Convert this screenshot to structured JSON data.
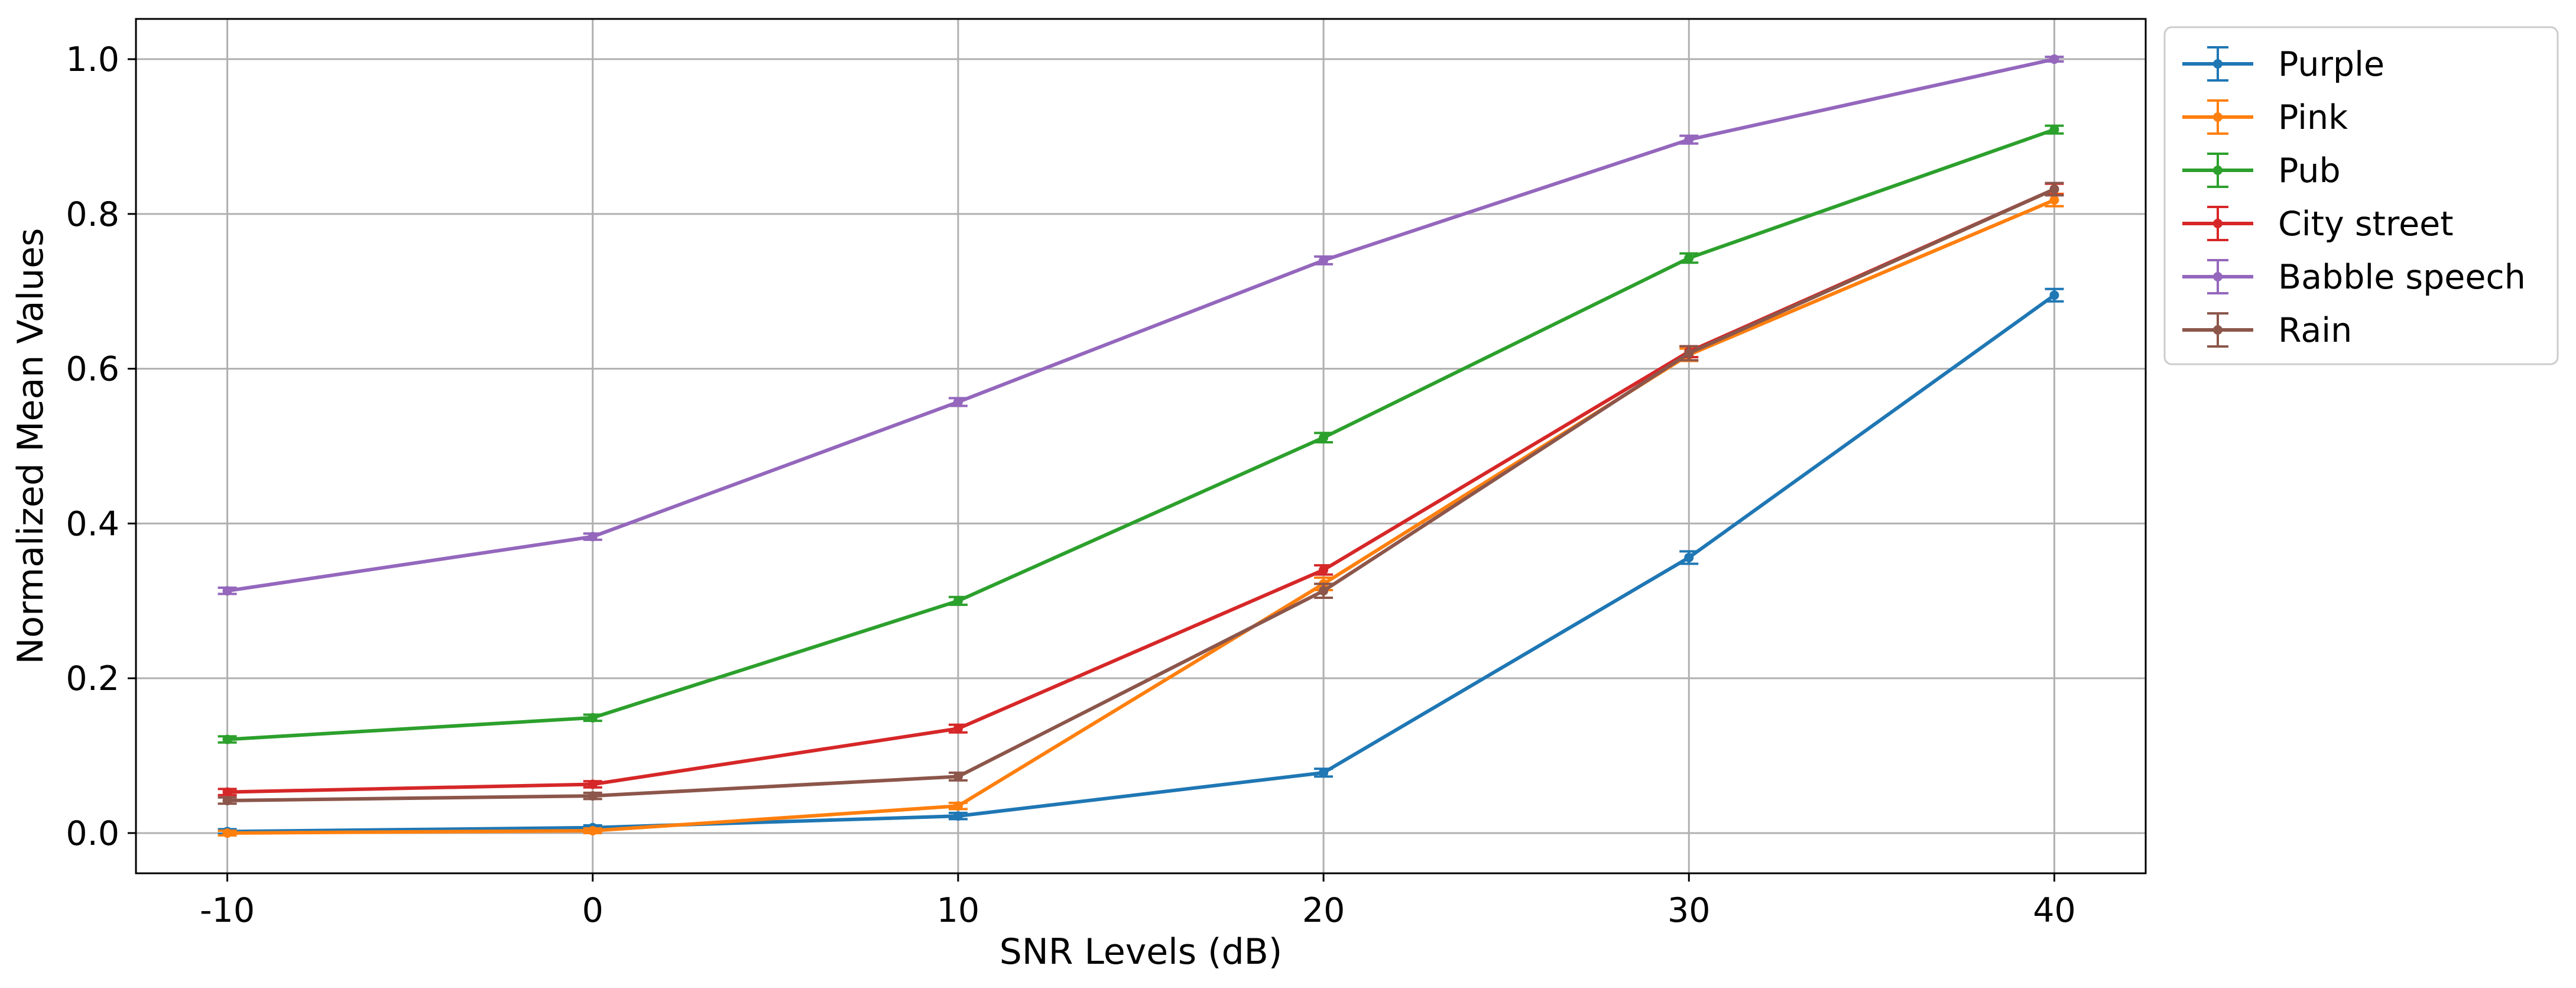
{
  "chart_data": {
    "type": "line",
    "title": "",
    "xlabel": "SNR Levels (dB)",
    "ylabel": "Normalized Mean Values",
    "x": [
      -10,
      0,
      10,
      20,
      30,
      40
    ],
    "xlim": [
      -12.5,
      42.5
    ],
    "ylim": [
      -0.052,
      1.052
    ],
    "xticks": [
      -10,
      0,
      10,
      20,
      30,
      40
    ],
    "xtick_labels": [
      "-10",
      "0",
      "10",
      "20",
      "30",
      "40"
    ],
    "yticks": [
      0.0,
      0.2,
      0.4,
      0.6,
      0.8,
      1.0
    ],
    "ytick_labels": [
      "0.0",
      "0.2",
      "0.4",
      "0.6",
      "0.8",
      "1.0"
    ],
    "grid": true,
    "legend_position": "outside-right-top",
    "error_bars": true,
    "series": [
      {
        "name": "Purple",
        "color": "#1f77b4",
        "values": [
          0.002,
          0.007,
          0.022,
          0.078,
          0.356,
          0.695
        ],
        "errors": [
          0.003,
          0.003,
          0.004,
          0.005,
          0.008,
          0.008
        ]
      },
      {
        "name": "Pink",
        "color": "#ff7f0e",
        "values": [
          0.0,
          0.003,
          0.035,
          0.322,
          0.618,
          0.818
        ],
        "errors": [
          0.003,
          0.003,
          0.004,
          0.008,
          0.008,
          0.008
        ]
      },
      {
        "name": "Pub",
        "color": "#2ca02c",
        "values": [
          0.121,
          0.149,
          0.3,
          0.511,
          0.743,
          0.909
        ],
        "errors": [
          0.004,
          0.004,
          0.005,
          0.006,
          0.006,
          0.005
        ]
      },
      {
        "name": "City street",
        "color": "#d62728",
        "values": [
          0.053,
          0.063,
          0.135,
          0.34,
          0.622,
          0.832
        ],
        "errors": [
          0.004,
          0.004,
          0.005,
          0.006,
          0.007,
          0.007
        ]
      },
      {
        "name": "Babble speech",
        "color": "#9467bd",
        "values": [
          0.313,
          0.383,
          0.557,
          0.74,
          0.896,
          1.0
        ],
        "errors": [
          0.004,
          0.004,
          0.005,
          0.005,
          0.005,
          0.003
        ]
      },
      {
        "name": "Rain",
        "color": "#8c564b",
        "values": [
          0.042,
          0.048,
          0.073,
          0.313,
          0.62,
          0.832
        ],
        "errors": [
          0.004,
          0.004,
          0.005,
          0.009,
          0.009,
          0.008
        ]
      }
    ]
  }
}
